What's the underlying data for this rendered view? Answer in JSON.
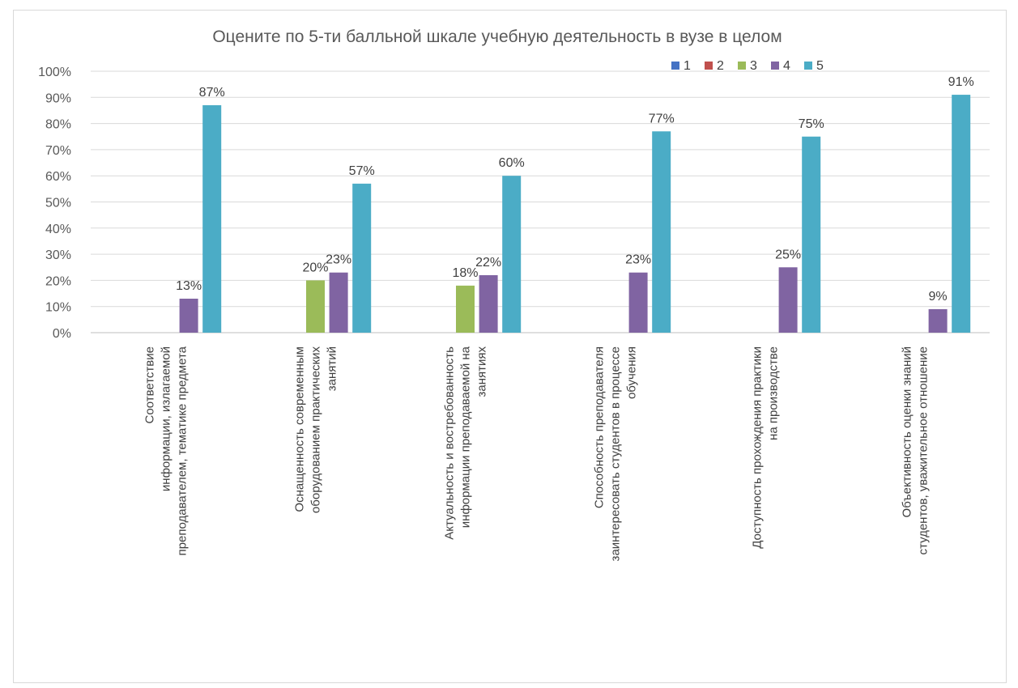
{
  "chart_data": {
    "type": "bar",
    "title": "Оцените по 5-ти балльной шкале учебную деятельность в вузе в целом",
    "xlabel": "",
    "ylabel": "",
    "ylim": [
      0,
      1
    ],
    "y_ticks": [
      "0%",
      "10%",
      "20%",
      "30%",
      "40%",
      "50%",
      "60%",
      "70%",
      "80%",
      "90%",
      "100%"
    ],
    "grid": true,
    "legend_position": "top-right",
    "categories": [
      [
        "Соответствие",
        "информации, излагаемой",
        "преподавателем, тематике предмета"
      ],
      [
        "Оснащенность современным",
        "оборудованием практических",
        "занятий"
      ],
      [
        "Актуальность и востребованность",
        "информации преподаваемой на",
        "занятиях"
      ],
      [
        "Способность преподавателя",
        "заинтересовать студентов в процессе",
        "обучения"
      ],
      [
        "Доступность прохождения практики",
        "на производстве"
      ],
      [
        "Объективность оценки знаний",
        "студентов, уважительное отношение"
      ]
    ],
    "series": [
      {
        "name": "1",
        "color": "#4472c4",
        "values": [
          0,
          0,
          0,
          0,
          0,
          0
        ],
        "labels": [
          "",
          "",
          "",
          "",
          "",
          ""
        ]
      },
      {
        "name": "2",
        "color": "#c0504d",
        "values": [
          0,
          0,
          0,
          0,
          0,
          0
        ],
        "labels": [
          "",
          "",
          "",
          "",
          "",
          ""
        ]
      },
      {
        "name": "3",
        "color": "#9bbb59",
        "values": [
          0,
          0.2,
          0.18,
          0,
          0,
          0
        ],
        "labels": [
          "",
          "20%",
          "18%",
          "",
          "",
          ""
        ]
      },
      {
        "name": "4",
        "color": "#8064a2",
        "values": [
          0.13,
          0.23,
          0.22,
          0.23,
          0.25,
          0.09
        ],
        "labels": [
          "13%",
          "23%",
          "22%",
          "23%",
          "25%",
          "9%"
        ]
      },
      {
        "name": "5",
        "color": "#4bacc6",
        "values": [
          0.87,
          0.57,
          0.6,
          0.77,
          0.75,
          0.91
        ],
        "labels": [
          "87%",
          "57%",
          "60%",
          "77%",
          "75%",
          "91%"
        ]
      }
    ]
  }
}
